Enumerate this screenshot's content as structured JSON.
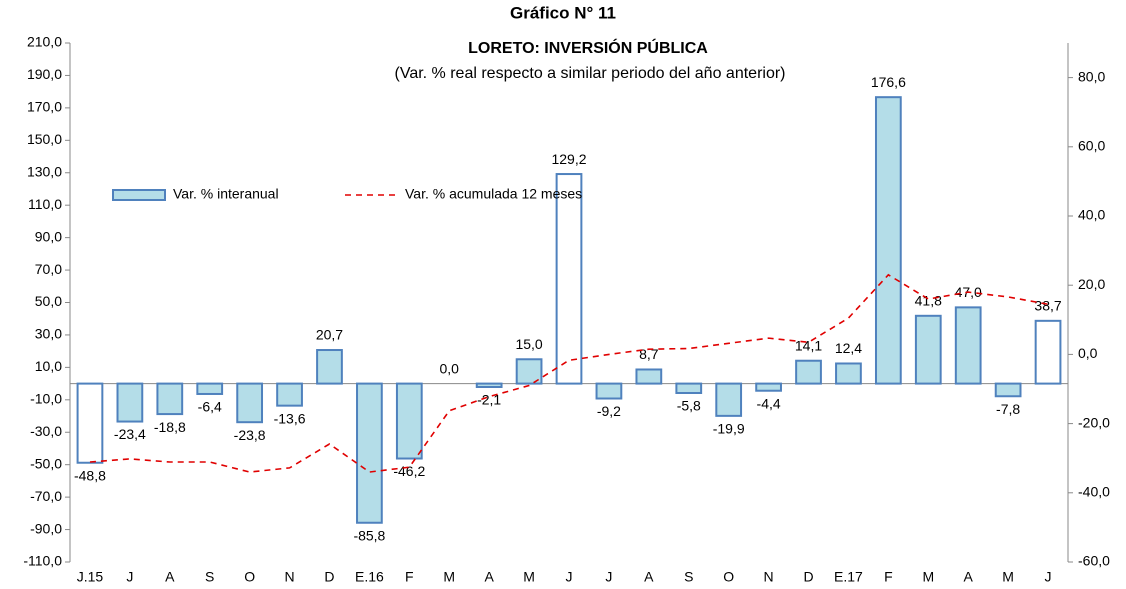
{
  "chart_data": {
    "type": "bar_line",
    "title": "Gráfico N° 11",
    "subtitle": "LORETO: INVERSIÓN PÚBLICA",
    "note": "(Var. % real respecto a similar periodo del año anterior)",
    "categories": [
      "J.15",
      "J",
      "A",
      "S",
      "O",
      "N",
      "D",
      "E.16",
      "F",
      "M",
      "A",
      "M",
      "J",
      "J",
      "A",
      "S",
      "O",
      "N",
      "D",
      "E.17",
      "F",
      "M",
      "A",
      "M",
      "J"
    ],
    "series": [
      {
        "name": "Var. % interanual",
        "type": "bar",
        "color": "#b4dde8",
        "border": "#4f81bd",
        "colors": [
          "#ffffff",
          "#b4dde8",
          "#b4dde8",
          "#b4dde8",
          "#b4dde8",
          "#b4dde8",
          "#b4dde8",
          "#b4dde8",
          "#b4dde8",
          "#b4dde8",
          "#b4dde8",
          "#b4dde8",
          "#ffffff",
          "#b4dde8",
          "#b4dde8",
          "#b4dde8",
          "#b4dde8",
          "#b4dde8",
          "#b4dde8",
          "#b4dde8",
          "#b4dde8",
          "#b4dde8",
          "#b4dde8",
          "#b4dde8",
          "#ffffff"
        ],
        "values": [
          -48.8,
          -23.4,
          -18.8,
          -6.4,
          -23.8,
          -13.6,
          20.7,
          -85.8,
          -46.2,
          0.0,
          -2.1,
          15.0,
          129.2,
          -9.2,
          8.7,
          -5.8,
          -19.9,
          -4.4,
          14.1,
          12.4,
          176.6,
          41.8,
          47.0,
          -7.8,
          38.7
        ],
        "value_labels": [
          "-48,8",
          "-23,4",
          "-18,8",
          "-6,4",
          "-23,8",
          "-13,6",
          "20,7",
          "-85,8",
          "-46,2",
          "0,0",
          "-2,1",
          "15,0",
          "129,2",
          "-9,2",
          "8,7",
          "-5,8",
          "-19,9",
          "-4,4",
          "14,1",
          "12,4",
          "176,6",
          "41,8",
          "47,0",
          "-7,8",
          "38,7"
        ]
      },
      {
        "name": "Var. % acumulada 12 meses",
        "type": "line",
        "color": "#e00000",
        "dashed": true,
        "axis": "y2",
        "values": [
          -31.1,
          -30.2,
          -31.1,
          -31.1,
          -34,
          -32.8,
          -25.9,
          -34,
          -32.6,
          -16.3,
          -12.2,
          -9,
          -1.7,
          0,
          1.5,
          1.7,
          3.2,
          4.7,
          3.5,
          10.5,
          23,
          16,
          18,
          16.6,
          14.5
        ]
      }
    ],
    "ylim": [
      -110,
      210
    ],
    "yticks": [
      {
        "value": 210,
        "label": "210,0"
      },
      {
        "value": 190,
        "label": "190,0"
      },
      {
        "value": 170,
        "label": "170,0"
      },
      {
        "value": 150,
        "label": "150,0"
      },
      {
        "value": 130,
        "label": "130,0"
      },
      {
        "value": 110,
        "label": "110,0"
      },
      {
        "value": 90,
        "label": "90,0"
      },
      {
        "value": 70,
        "label": "70,0"
      },
      {
        "value": 50,
        "label": "50,0"
      },
      {
        "value": 30,
        "label": "30,0"
      },
      {
        "value": 10,
        "label": "10,0"
      },
      {
        "value": -10,
        "label": "-10,0"
      },
      {
        "value": -30,
        "label": "-30,0"
      },
      {
        "value": -50,
        "label": "-50,0"
      },
      {
        "value": -70,
        "label": "-70,0"
      },
      {
        "value": -90,
        "label": "-90,0"
      },
      {
        "value": -110,
        "label": "-110,0"
      }
    ],
    "y2lim": [
      -60,
      90
    ],
    "y2ticks": [
      {
        "value": 80,
        "label": "80,0"
      },
      {
        "value": 60,
        "label": "60,0"
      },
      {
        "value": 40,
        "label": "40,0"
      },
      {
        "value": 20,
        "label": "20,0"
      },
      {
        "value": 0,
        "label": "0,0"
      },
      {
        "value": -20,
        "label": "-20,0"
      },
      {
        "value": -40,
        "label": "-40,0"
      },
      {
        "value": -60,
        "label": "-60,0"
      }
    ]
  }
}
